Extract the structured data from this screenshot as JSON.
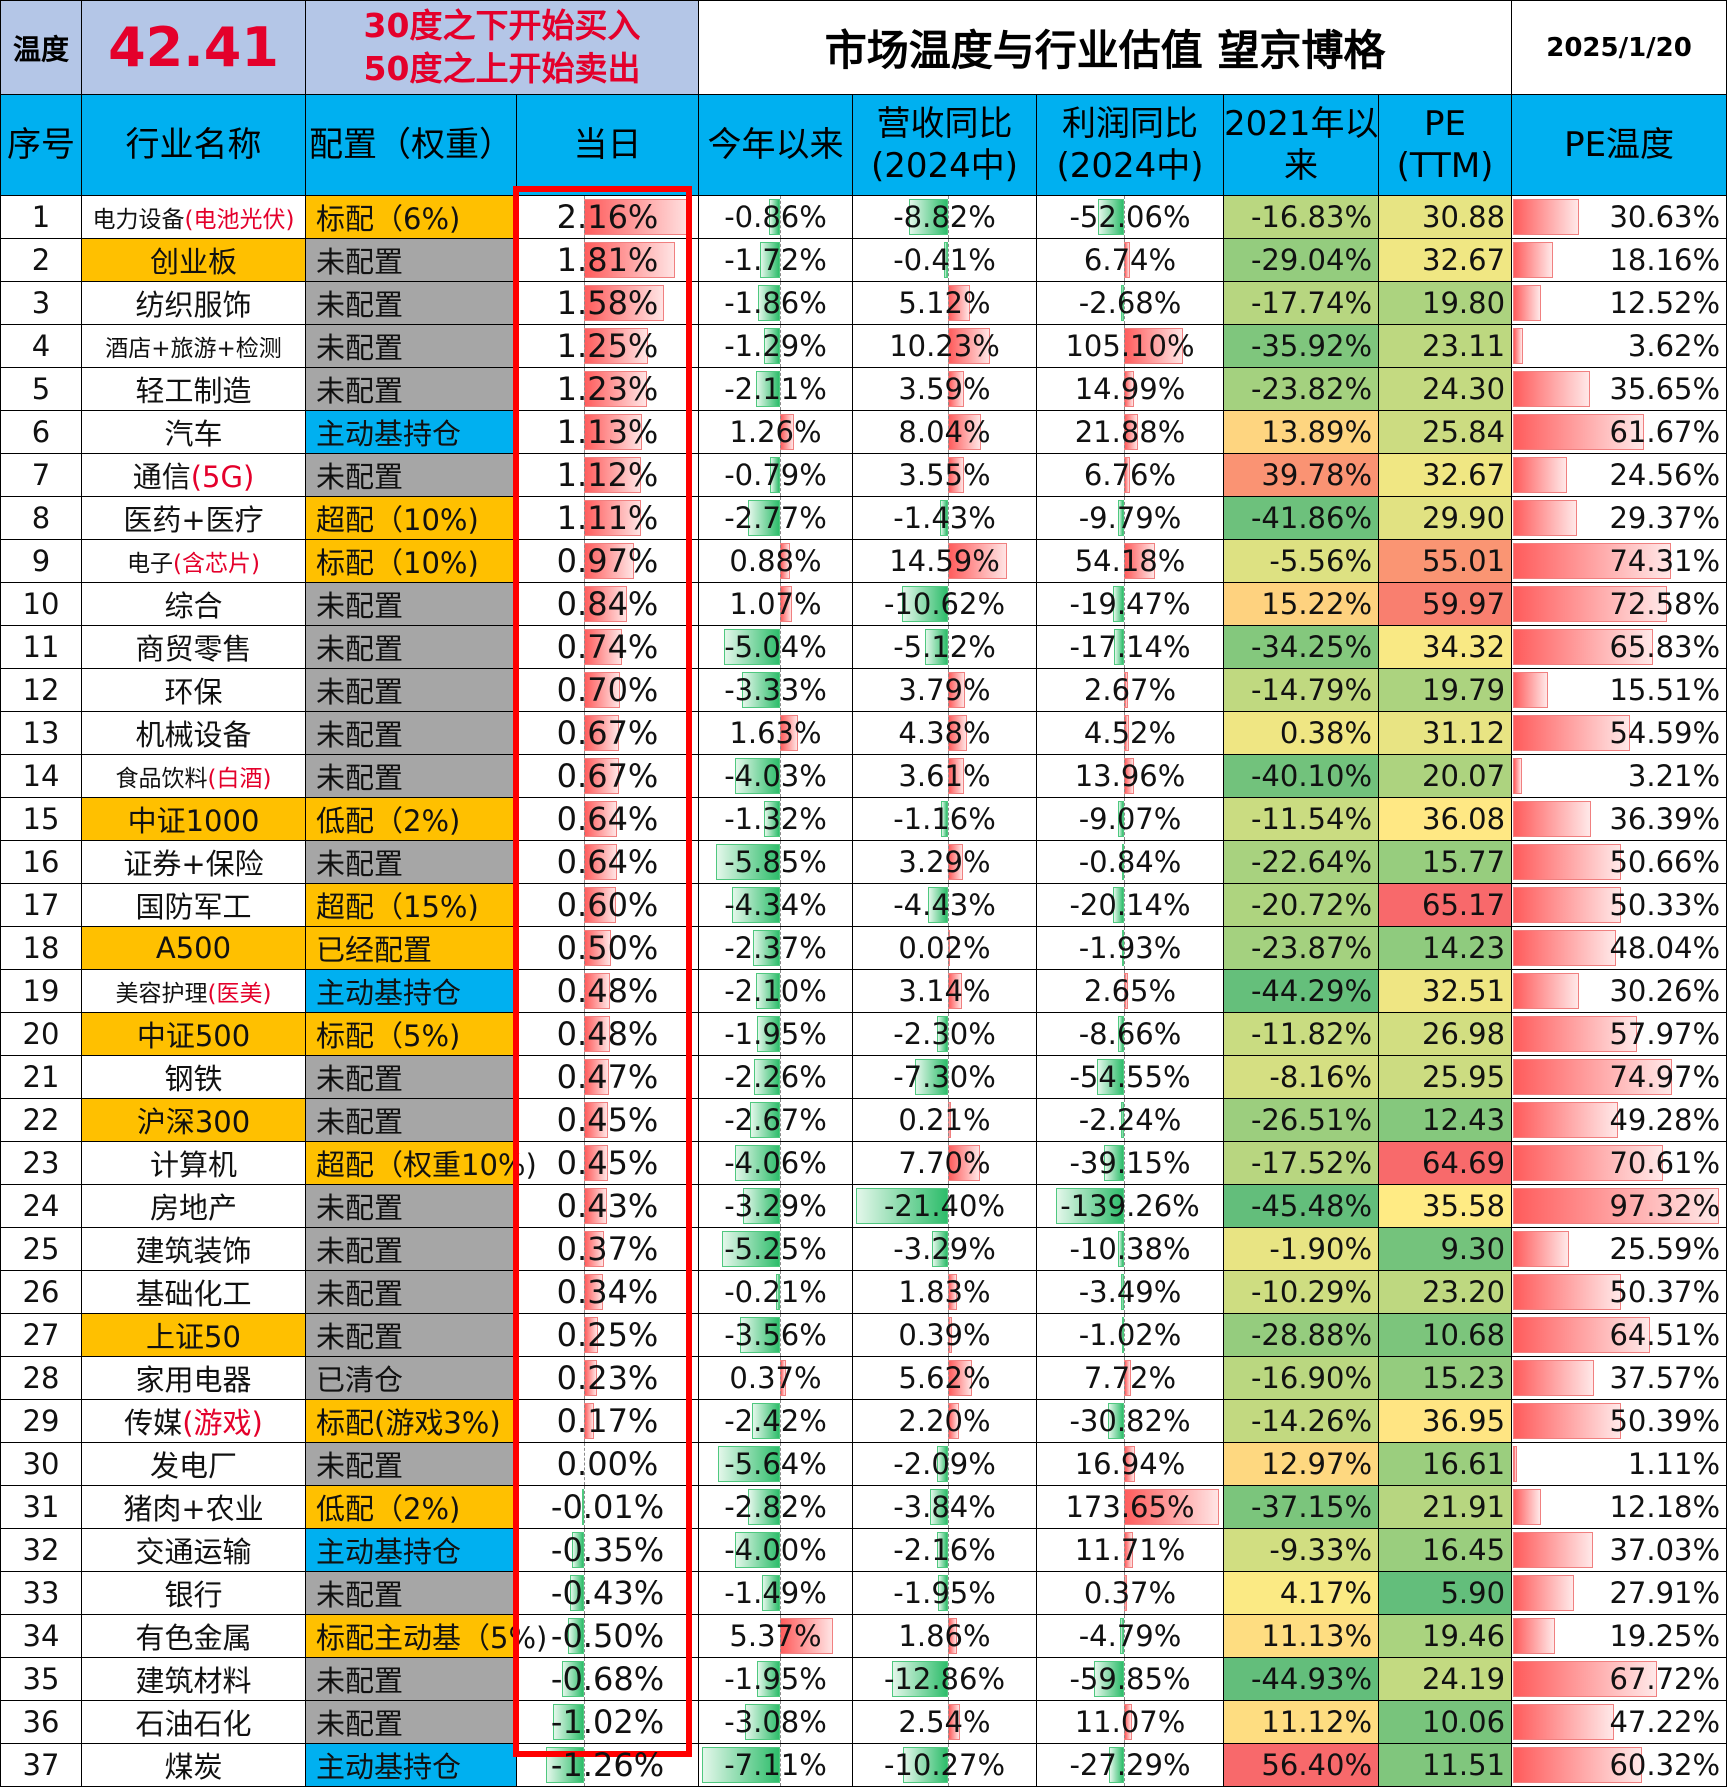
{
  "header": {
    "temp_label": "温度",
    "temp_value": "42.41",
    "rule_line1": "30度之下开始买入",
    "rule_line2": "50度之上开始卖出",
    "title": "市场温度与行业估值 望京博格",
    "date": "2025/1/20"
  },
  "columns": {
    "idx": "序号",
    "name": "行业名称",
    "alloc": "配置（权重）",
    "today": "当日",
    "ytd": "今年以来",
    "rev_l1": "营收同比",
    "rev_l2": "(2024中)",
    "prof_l1": "利润同比",
    "prof_l2": "(2024中)",
    "since_l1": "2021年以",
    "since_l2": "来",
    "pe_l1": "PE",
    "pe_l2": "(TTM)",
    "petemp": "PE温度"
  },
  "colors": {
    "header_blue": "#00b0f0",
    "temp_bg": "#b4c6e7",
    "highlight_red": "#e4002b",
    "alloc_gray": "#a6a6a6",
    "alloc_orange": "#ffc000",
    "alloc_blue": "#00b0f0",
    "frame_red": "#ff0000"
  },
  "rows": [
    {
      "idx": "1",
      "name": "电力设备",
      "name_hl": "(电池光伏)",
      "name_bg": "#ffffff",
      "alloc": "标配（6%)",
      "alloc_bg": "#ffc000",
      "today": "2.16%",
      "today_v": 2.16,
      "ytd": "-0.86%",
      "ytd_v": -0.86,
      "rev": "-8.82%",
      "rev_v": -8.82,
      "prof": "-52.06%",
      "prof_v": -52.06,
      "since": "-16.83%",
      "since_v": -16.83,
      "pe": "30.88",
      "pe_v": 30.88,
      "petemp": "30.63%",
      "petemp_v": 30.63
    },
    {
      "idx": "2",
      "name": "创业板",
      "name_hl": "",
      "name_bg": "#ffc000",
      "alloc": "未配置",
      "alloc_bg": "#a6a6a6",
      "today": "1.81%",
      "today_v": 1.81,
      "ytd": "-1.72%",
      "ytd_v": -1.72,
      "rev": "-0.41%",
      "rev_v": -0.41,
      "prof": "6.74%",
      "prof_v": 6.74,
      "since": "-29.04%",
      "since_v": -29.04,
      "pe": "32.67",
      "pe_v": 32.67,
      "petemp": "18.16%",
      "petemp_v": 18.16
    },
    {
      "idx": "3",
      "name": "纺织服饰",
      "name_hl": "",
      "name_bg": "#ffffff",
      "alloc": "未配置",
      "alloc_bg": "#a6a6a6",
      "today": "1.58%",
      "today_v": 1.58,
      "ytd": "-1.86%",
      "ytd_v": -1.86,
      "rev": "5.12%",
      "rev_v": 5.12,
      "prof": "-2.68%",
      "prof_v": -2.68,
      "since": "-17.74%",
      "since_v": -17.74,
      "pe": "19.80",
      "pe_v": 19.8,
      "petemp": "12.52%",
      "petemp_v": 12.52
    },
    {
      "idx": "4",
      "name": "酒店+旅游+检测",
      "name_hl": "",
      "name_bg": "#ffffff",
      "alloc": "未配置",
      "alloc_bg": "#a6a6a6",
      "today": "1.25%",
      "today_v": 1.25,
      "ytd": "-1.29%",
      "ytd_v": -1.29,
      "rev": "10.23%",
      "rev_v": 10.23,
      "prof": "105.10%",
      "prof_v": 105.1,
      "since": "-35.92%",
      "since_v": -35.92,
      "pe": "23.11",
      "pe_v": 23.11,
      "petemp": "3.62%",
      "petemp_v": 3.62
    },
    {
      "idx": "5",
      "name": "轻工制造",
      "name_hl": "",
      "name_bg": "#ffffff",
      "alloc": "未配置",
      "alloc_bg": "#a6a6a6",
      "today": "1.23%",
      "today_v": 1.23,
      "ytd": "-2.11%",
      "ytd_v": -2.11,
      "rev": "3.59%",
      "rev_v": 3.59,
      "prof": "14.99%",
      "prof_v": 14.99,
      "since": "-23.82%",
      "since_v": -23.82,
      "pe": "24.30",
      "pe_v": 24.3,
      "petemp": "35.65%",
      "petemp_v": 35.65
    },
    {
      "idx": "6",
      "name": "汽车",
      "name_hl": "",
      "name_bg": "#ffffff",
      "alloc": "主动基持仓",
      "alloc_bg": "#00b0f0",
      "today": "1.13%",
      "today_v": 1.13,
      "ytd": "1.26%",
      "ytd_v": 1.26,
      "rev": "8.04%",
      "rev_v": 8.04,
      "prof": "21.88%",
      "prof_v": 21.88,
      "since": "13.89%",
      "since_v": 13.89,
      "pe": "25.84",
      "pe_v": 25.84,
      "petemp": "61.67%",
      "petemp_v": 61.67
    },
    {
      "idx": "7",
      "name": "通信",
      "name_hl": "(5G)",
      "name_bg": "#ffffff",
      "alloc": "未配置",
      "alloc_bg": "#a6a6a6",
      "today": "1.12%",
      "today_v": 1.12,
      "ytd": "-0.79%",
      "ytd_v": -0.79,
      "rev": "3.55%",
      "rev_v": 3.55,
      "prof": "6.76%",
      "prof_v": 6.76,
      "since": "39.78%",
      "since_v": 39.78,
      "pe": "32.67",
      "pe_v": 32.67,
      "petemp": "24.56%",
      "petemp_v": 24.56
    },
    {
      "idx": "8",
      "name": "医药+医疗",
      "name_hl": "",
      "name_bg": "#ffffff",
      "alloc": "超配（10%)",
      "alloc_bg": "#ffc000",
      "today": "1.11%",
      "today_v": 1.11,
      "ytd": "-2.77%",
      "ytd_v": -2.77,
      "rev": "-1.43%",
      "rev_v": -1.43,
      "prof": "-9.79%",
      "prof_v": -9.79,
      "since": "-41.86%",
      "since_v": -41.86,
      "pe": "29.90",
      "pe_v": 29.9,
      "petemp": "29.37%",
      "petemp_v": 29.37
    },
    {
      "idx": "9",
      "name": "电子",
      "name_hl": "(含芯片)",
      "name_bg": "#ffffff",
      "alloc": "标配（10%)",
      "alloc_bg": "#ffc000",
      "today": "0.97%",
      "today_v": 0.97,
      "ytd": "0.88%",
      "ytd_v": 0.88,
      "rev": "14.59%",
      "rev_v": 14.59,
      "prof": "54.18%",
      "prof_v": 54.18,
      "since": "-5.56%",
      "since_v": -5.56,
      "pe": "55.01",
      "pe_v": 55.01,
      "petemp": "74.31%",
      "petemp_v": 74.31
    },
    {
      "idx": "10",
      "name": "综合",
      "name_hl": "",
      "name_bg": "#ffffff",
      "alloc": "未配置",
      "alloc_bg": "#a6a6a6",
      "today": "0.84%",
      "today_v": 0.84,
      "ytd": "1.07%",
      "ytd_v": 1.07,
      "rev": "-10.62%",
      "rev_v": -10.62,
      "prof": "-19.47%",
      "prof_v": -19.47,
      "since": "15.22%",
      "since_v": 15.22,
      "pe": "59.97",
      "pe_v": 59.97,
      "petemp": "72.58%",
      "petemp_v": 72.58
    },
    {
      "idx": "11",
      "name": "商贸零售",
      "name_hl": "",
      "name_bg": "#ffffff",
      "alloc": "未配置",
      "alloc_bg": "#a6a6a6",
      "today": "0.74%",
      "today_v": 0.74,
      "ytd": "-5.04%",
      "ytd_v": -5.04,
      "rev": "-5.12%",
      "rev_v": -5.12,
      "prof": "-17.14%",
      "prof_v": -17.14,
      "since": "-34.25%",
      "since_v": -34.25,
      "pe": "34.32",
      "pe_v": 34.32,
      "petemp": "65.83%",
      "petemp_v": 65.83
    },
    {
      "idx": "12",
      "name": "环保",
      "name_hl": "",
      "name_bg": "#ffffff",
      "alloc": "未配置",
      "alloc_bg": "#a6a6a6",
      "today": "0.70%",
      "today_v": 0.7,
      "ytd": "-3.33%",
      "ytd_v": -3.33,
      "rev": "3.79%",
      "rev_v": 3.79,
      "prof": "2.67%",
      "prof_v": 2.67,
      "since": "-14.79%",
      "since_v": -14.79,
      "pe": "19.79",
      "pe_v": 19.79,
      "petemp": "15.51%",
      "petemp_v": 15.51
    },
    {
      "idx": "13",
      "name": "机械设备",
      "name_hl": "",
      "name_bg": "#ffffff",
      "alloc": "未配置",
      "alloc_bg": "#a6a6a6",
      "today": "0.67%",
      "today_v": 0.67,
      "ytd": "1.63%",
      "ytd_v": 1.63,
      "rev": "4.38%",
      "rev_v": 4.38,
      "prof": "4.52%",
      "prof_v": 4.52,
      "since": "0.38%",
      "since_v": 0.38,
      "pe": "31.12",
      "pe_v": 31.12,
      "petemp": "54.59%",
      "petemp_v": 54.59
    },
    {
      "idx": "14",
      "name": "食品饮料",
      "name_hl": "(白酒)",
      "name_bg": "#ffffff",
      "alloc": "未配置",
      "alloc_bg": "#a6a6a6",
      "today": "0.67%",
      "today_v": 0.67,
      "ytd": "-4.03%",
      "ytd_v": -4.03,
      "rev": "3.61%",
      "rev_v": 3.61,
      "prof": "13.96%",
      "prof_v": 13.96,
      "since": "-40.10%",
      "since_v": -40.1,
      "pe": "20.07",
      "pe_v": 20.07,
      "petemp": "3.21%",
      "petemp_v": 3.21
    },
    {
      "idx": "15",
      "name": "中证1000",
      "name_hl": "",
      "name_bg": "#ffc000",
      "alloc": "低配（2%)",
      "alloc_bg": "#ffc000",
      "today": "0.64%",
      "today_v": 0.64,
      "ytd": "-1.32%",
      "ytd_v": -1.32,
      "rev": "-1.16%",
      "rev_v": -1.16,
      "prof": "-9.07%",
      "prof_v": -9.07,
      "since": "-11.54%",
      "since_v": -11.54,
      "pe": "36.08",
      "pe_v": 36.08,
      "petemp": "36.39%",
      "petemp_v": 36.39
    },
    {
      "idx": "16",
      "name": "证券+保险",
      "name_hl": "",
      "name_bg": "#ffffff",
      "alloc": "未配置",
      "alloc_bg": "#a6a6a6",
      "today": "0.64%",
      "today_v": 0.64,
      "ytd": "-5.85%",
      "ytd_v": -5.85,
      "rev": "3.29%",
      "rev_v": 3.29,
      "prof": "-0.84%",
      "prof_v": -0.84,
      "since": "-22.64%",
      "since_v": -22.64,
      "pe": "15.77",
      "pe_v": 15.77,
      "petemp": "50.66%",
      "petemp_v": 50.66
    },
    {
      "idx": "17",
      "name": "国防军工",
      "name_hl": "",
      "name_bg": "#ffffff",
      "alloc": "超配（15%)",
      "alloc_bg": "#ffc000",
      "today": "0.60%",
      "today_v": 0.6,
      "ytd": "-4.34%",
      "ytd_v": -4.34,
      "rev": "-4.43%",
      "rev_v": -4.43,
      "prof": "-20.14%",
      "prof_v": -20.14,
      "since": "-20.72%",
      "since_v": -20.72,
      "pe": "65.17",
      "pe_v": 65.17,
      "petemp": "50.33%",
      "petemp_v": 50.33
    },
    {
      "idx": "18",
      "name": "A500",
      "name_hl": "",
      "name_bg": "#ffc000",
      "alloc": "已经配置",
      "alloc_bg": "#ffc000",
      "today": "0.50%",
      "today_v": 0.5,
      "ytd": "-2.37%",
      "ytd_v": -2.37,
      "rev": "0.02%",
      "rev_v": 0.02,
      "prof": "-1.93%",
      "prof_v": -1.93,
      "since": "-23.87%",
      "since_v": -23.87,
      "pe": "14.23",
      "pe_v": 14.23,
      "petemp": "48.04%",
      "petemp_v": 48.04
    },
    {
      "idx": "19",
      "name": "美容护理",
      "name_hl": "(医美)",
      "name_bg": "#ffffff",
      "alloc": "主动基持仓",
      "alloc_bg": "#00b0f0",
      "today": "0.48%",
      "today_v": 0.48,
      "ytd": "-2.10%",
      "ytd_v": -2.1,
      "rev": "3.14%",
      "rev_v": 3.14,
      "prof": "2.65%",
      "prof_v": 2.65,
      "since": "-44.29%",
      "since_v": -44.29,
      "pe": "32.51",
      "pe_v": 32.51,
      "petemp": "30.26%",
      "petemp_v": 30.26
    },
    {
      "idx": "20",
      "name": "中证500",
      "name_hl": "",
      "name_bg": "#ffc000",
      "alloc": "标配（5%)",
      "alloc_bg": "#ffc000",
      "today": "0.48%",
      "today_v": 0.48,
      "ytd": "-1.95%",
      "ytd_v": -1.95,
      "rev": "-2.30%",
      "rev_v": -2.3,
      "prof": "-8.66%",
      "prof_v": -8.66,
      "since": "-11.82%",
      "since_v": -11.82,
      "pe": "26.98",
      "pe_v": 26.98,
      "petemp": "57.97%",
      "petemp_v": 57.97
    },
    {
      "idx": "21",
      "name": "钢铁",
      "name_hl": "",
      "name_bg": "#ffffff",
      "alloc": "未配置",
      "alloc_bg": "#a6a6a6",
      "today": "0.47%",
      "today_v": 0.47,
      "ytd": "-2.26%",
      "ytd_v": -2.26,
      "rev": "-7.30%",
      "rev_v": -7.3,
      "prof": "-54.55%",
      "prof_v": -54.55,
      "since": "-8.16%",
      "since_v": -8.16,
      "pe": "25.95",
      "pe_v": 25.95,
      "petemp": "74.97%",
      "petemp_v": 74.97
    },
    {
      "idx": "22",
      "name": "沪深300",
      "name_hl": "",
      "name_bg": "#ffc000",
      "alloc": "未配置",
      "alloc_bg": "#a6a6a6",
      "today": "0.45%",
      "today_v": 0.45,
      "ytd": "-2.67%",
      "ytd_v": -2.67,
      "rev": "0.21%",
      "rev_v": 0.21,
      "prof": "-2.24%",
      "prof_v": -2.24,
      "since": "-26.51%",
      "since_v": -26.51,
      "pe": "12.43",
      "pe_v": 12.43,
      "petemp": "49.28%",
      "petemp_v": 49.28
    },
    {
      "idx": "23",
      "name": "计算机",
      "name_hl": "",
      "name_bg": "#ffffff",
      "alloc": "超配（权重10%)",
      "alloc_bg": "#ffc000",
      "today": "0.45%",
      "today_v": 0.45,
      "ytd": "-4.06%",
      "ytd_v": -4.06,
      "rev": "7.70%",
      "rev_v": 7.7,
      "prof": "-39.15%",
      "prof_v": -39.15,
      "since": "-17.52%",
      "since_v": -17.52,
      "pe": "64.69",
      "pe_v": 64.69,
      "petemp": "70.61%",
      "petemp_v": 70.61
    },
    {
      "idx": "24",
      "name": "房地产",
      "name_hl": "",
      "name_bg": "#ffffff",
      "alloc": "未配置",
      "alloc_bg": "#a6a6a6",
      "today": "0.43%",
      "today_v": 0.43,
      "ytd": "-3.29%",
      "ytd_v": -3.29,
      "rev": "-21.40%",
      "rev_v": -21.4,
      "prof": "-139.26%",
      "prof_v": -139.26,
      "since": "-45.48%",
      "since_v": -45.48,
      "pe": "35.58",
      "pe_v": 35.58,
      "petemp": "97.32%",
      "petemp_v": 97.32
    },
    {
      "idx": "25",
      "name": "建筑装饰",
      "name_hl": "",
      "name_bg": "#ffffff",
      "alloc": "未配置",
      "alloc_bg": "#a6a6a6",
      "today": "0.37%",
      "today_v": 0.37,
      "ytd": "-5.25%",
      "ytd_v": -5.25,
      "rev": "-3.29%",
      "rev_v": -3.29,
      "prof": "-10.38%",
      "prof_v": -10.38,
      "since": "-1.90%",
      "since_v": -1.9,
      "pe": "9.30",
      "pe_v": 9.3,
      "petemp": "25.59%",
      "petemp_v": 25.59
    },
    {
      "idx": "26",
      "name": "基础化工",
      "name_hl": "",
      "name_bg": "#ffffff",
      "alloc": "未配置",
      "alloc_bg": "#a6a6a6",
      "today": "0.34%",
      "today_v": 0.34,
      "ytd": "-0.21%",
      "ytd_v": -0.21,
      "rev": "1.83%",
      "rev_v": 1.83,
      "prof": "-3.49%",
      "prof_v": -3.49,
      "since": "-10.29%",
      "since_v": -10.29,
      "pe": "23.20",
      "pe_v": 23.2,
      "petemp": "50.37%",
      "petemp_v": 50.37
    },
    {
      "idx": "27",
      "name": "上证50",
      "name_hl": "",
      "name_bg": "#ffc000",
      "alloc": "未配置",
      "alloc_bg": "#a6a6a6",
      "today": "0.25%",
      "today_v": 0.25,
      "ytd": "-3.56%",
      "ytd_v": -3.56,
      "rev": "0.39%",
      "rev_v": 0.39,
      "prof": "-1.02%",
      "prof_v": -1.02,
      "since": "-28.88%",
      "since_v": -28.88,
      "pe": "10.68",
      "pe_v": 10.68,
      "petemp": "64.51%",
      "petemp_v": 64.51
    },
    {
      "idx": "28",
      "name": "家用电器",
      "name_hl": "",
      "name_bg": "#ffffff",
      "alloc": "已清仓",
      "alloc_bg": "#a6a6a6",
      "today": "0.23%",
      "today_v": 0.23,
      "ytd": "0.37%",
      "ytd_v": 0.37,
      "rev": "5.62%",
      "rev_v": 5.62,
      "prof": "7.72%",
      "prof_v": 7.72,
      "since": "-16.90%",
      "since_v": -16.9,
      "pe": "15.23",
      "pe_v": 15.23,
      "petemp": "37.57%",
      "petemp_v": 37.57
    },
    {
      "idx": "29",
      "name": "传媒",
      "name_hl": "(游戏)",
      "name_bg": "#ffffff",
      "alloc": "标配(游戏3%)",
      "alloc_bg": "#ffc000",
      "today": "0.17%",
      "today_v": 0.17,
      "ytd": "-2.42%",
      "ytd_v": -2.42,
      "rev": "2.20%",
      "rev_v": 2.2,
      "prof": "-30.82%",
      "prof_v": -30.82,
      "since": "-14.26%",
      "since_v": -14.26,
      "pe": "36.95",
      "pe_v": 36.95,
      "petemp": "50.39%",
      "petemp_v": 50.39
    },
    {
      "idx": "30",
      "name": "发电厂",
      "name_hl": "",
      "name_bg": "#ffffff",
      "alloc": "未配置",
      "alloc_bg": "#a6a6a6",
      "today": "0.00%",
      "today_v": 0.0,
      "ytd": "-5.64%",
      "ytd_v": -5.64,
      "rev": "-2.09%",
      "rev_v": -2.09,
      "prof": "16.94%",
      "prof_v": 16.94,
      "since": "12.97%",
      "since_v": 12.97,
      "pe": "16.61",
      "pe_v": 16.61,
      "petemp": "1.11%",
      "petemp_v": 1.11
    },
    {
      "idx": "31",
      "name": "猪肉+农业",
      "name_hl": "",
      "name_bg": "#ffffff",
      "alloc": "低配（2%)",
      "alloc_bg": "#ffc000",
      "today": "-0.01%",
      "today_v": -0.01,
      "ytd": "-2.82%",
      "ytd_v": -2.82,
      "rev": "-3.84%",
      "rev_v": -3.84,
      "prof": "173.65%",
      "prof_v": 173.65,
      "since": "-37.15%",
      "since_v": -37.15,
      "pe": "21.91",
      "pe_v": 21.91,
      "petemp": "12.18%",
      "petemp_v": 12.18
    },
    {
      "idx": "32",
      "name": "交通运输",
      "name_hl": "",
      "name_bg": "#ffffff",
      "alloc": "主动基持仓",
      "alloc_bg": "#00b0f0",
      "today": "-0.35%",
      "today_v": -0.35,
      "ytd": "-4.00%",
      "ytd_v": -4.0,
      "rev": "-2.16%",
      "rev_v": -2.16,
      "prof": "11.71%",
      "prof_v": 11.71,
      "since": "-9.33%",
      "since_v": -9.33,
      "pe": "16.45",
      "pe_v": 16.45,
      "petemp": "37.03%",
      "petemp_v": 37.03
    },
    {
      "idx": "33",
      "name": "银行",
      "name_hl": "",
      "name_bg": "#ffffff",
      "alloc": "未配置",
      "alloc_bg": "#a6a6a6",
      "today": "-0.43%",
      "today_v": -0.43,
      "ytd": "-1.49%",
      "ytd_v": -1.49,
      "rev": "-1.95%",
      "rev_v": -1.95,
      "prof": "0.37%",
      "prof_v": 0.37,
      "since": "4.17%",
      "since_v": 4.17,
      "pe": "5.90",
      "pe_v": 5.9,
      "petemp": "27.91%",
      "petemp_v": 27.91
    },
    {
      "idx": "34",
      "name": "有色金属",
      "name_hl": "",
      "name_bg": "#ffffff",
      "alloc": "标配主动基（5%)",
      "alloc_bg": "#ffc000",
      "today": "-0.50%",
      "today_v": -0.5,
      "ytd": "5.37%",
      "ytd_v": 5.37,
      "rev": "1.86%",
      "rev_v": 1.86,
      "prof": "-4.79%",
      "prof_v": -4.79,
      "since": "11.13%",
      "since_v": 11.13,
      "pe": "19.46",
      "pe_v": 19.46,
      "petemp": "19.25%",
      "petemp_v": 19.25
    },
    {
      "idx": "35",
      "name": "建筑材料",
      "name_hl": "",
      "name_bg": "#ffffff",
      "alloc": "未配置",
      "alloc_bg": "#a6a6a6",
      "today": "-0.68%",
      "today_v": -0.68,
      "ytd": "-1.95%",
      "ytd_v": -1.95,
      "rev": "-12.86%",
      "rev_v": -12.86,
      "prof": "-59.85%",
      "prof_v": -59.85,
      "since": "-44.93%",
      "since_v": -44.93,
      "pe": "24.19",
      "pe_v": 24.19,
      "petemp": "67.72%",
      "petemp_v": 67.72
    },
    {
      "idx": "36",
      "name": "石油石化",
      "name_hl": "",
      "name_bg": "#ffffff",
      "alloc": "未配置",
      "alloc_bg": "#a6a6a6",
      "today": "-1.02%",
      "today_v": -1.02,
      "ytd": "-3.08%",
      "ytd_v": -3.08,
      "rev": "2.54%",
      "rev_v": 2.54,
      "prof": "11.07%",
      "prof_v": 11.07,
      "since": "11.12%",
      "since_v": 11.12,
      "pe": "10.06",
      "pe_v": 10.06,
      "petemp": "47.22%",
      "petemp_v": 47.22
    },
    {
      "idx": "37",
      "name": "煤炭",
      "name_hl": "",
      "name_bg": "#ffffff",
      "alloc": "主动基持仓",
      "alloc_bg": "#00b0f0",
      "today": "-1.26%",
      "today_v": -1.26,
      "ytd": "-7.11%",
      "ytd_v": -7.11,
      "rev": "-10.27%",
      "rev_v": -10.27,
      "prof": "-27.29%",
      "prof_v": -27.29,
      "since": "56.40%",
      "since_v": 56.4,
      "pe": "11.51",
      "pe_v": 11.51,
      "petemp": "60.32%",
      "petemp_v": 60.32
    }
  ]
}
